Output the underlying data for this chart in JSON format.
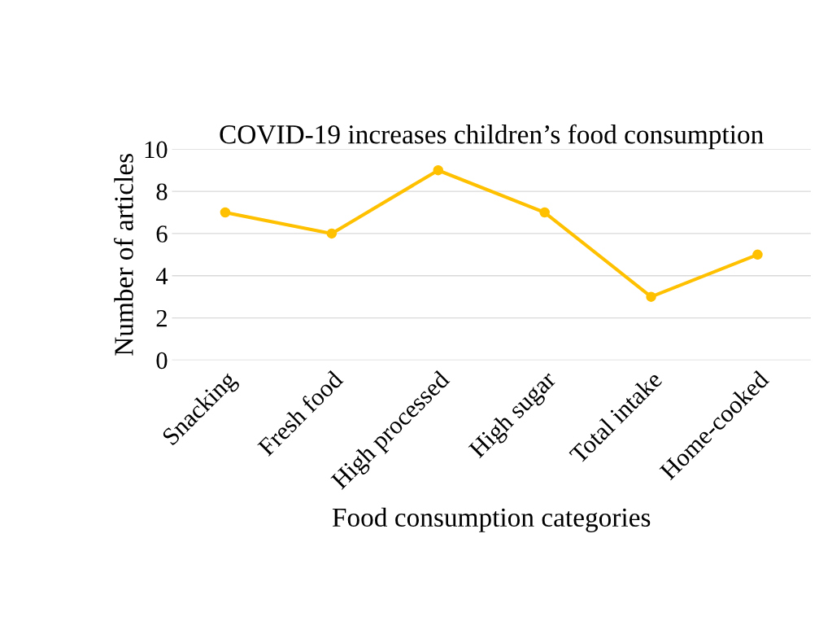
{
  "chart_data": {
    "type": "line",
    "title": "COVID-19 increases children’s food consumption",
    "xlabel": "Food consumption categories",
    "ylabel": "Number of articles",
    "categories": [
      "Snacking",
      "Fresh food",
      "High processed",
      "High sugar",
      "Total intake",
      "Home-cooked"
    ],
    "series": [
      {
        "color": "#ffc000",
        "values": [
          7,
          6,
          9,
          7,
          3,
          5
        ]
      }
    ],
    "ylim": [
      0,
      10
    ],
    "yticks": [
      0,
      2,
      4,
      6,
      8,
      10
    ],
    "grid": "y",
    "marker": "circle",
    "line_style": "solid",
    "legend": false
  }
}
